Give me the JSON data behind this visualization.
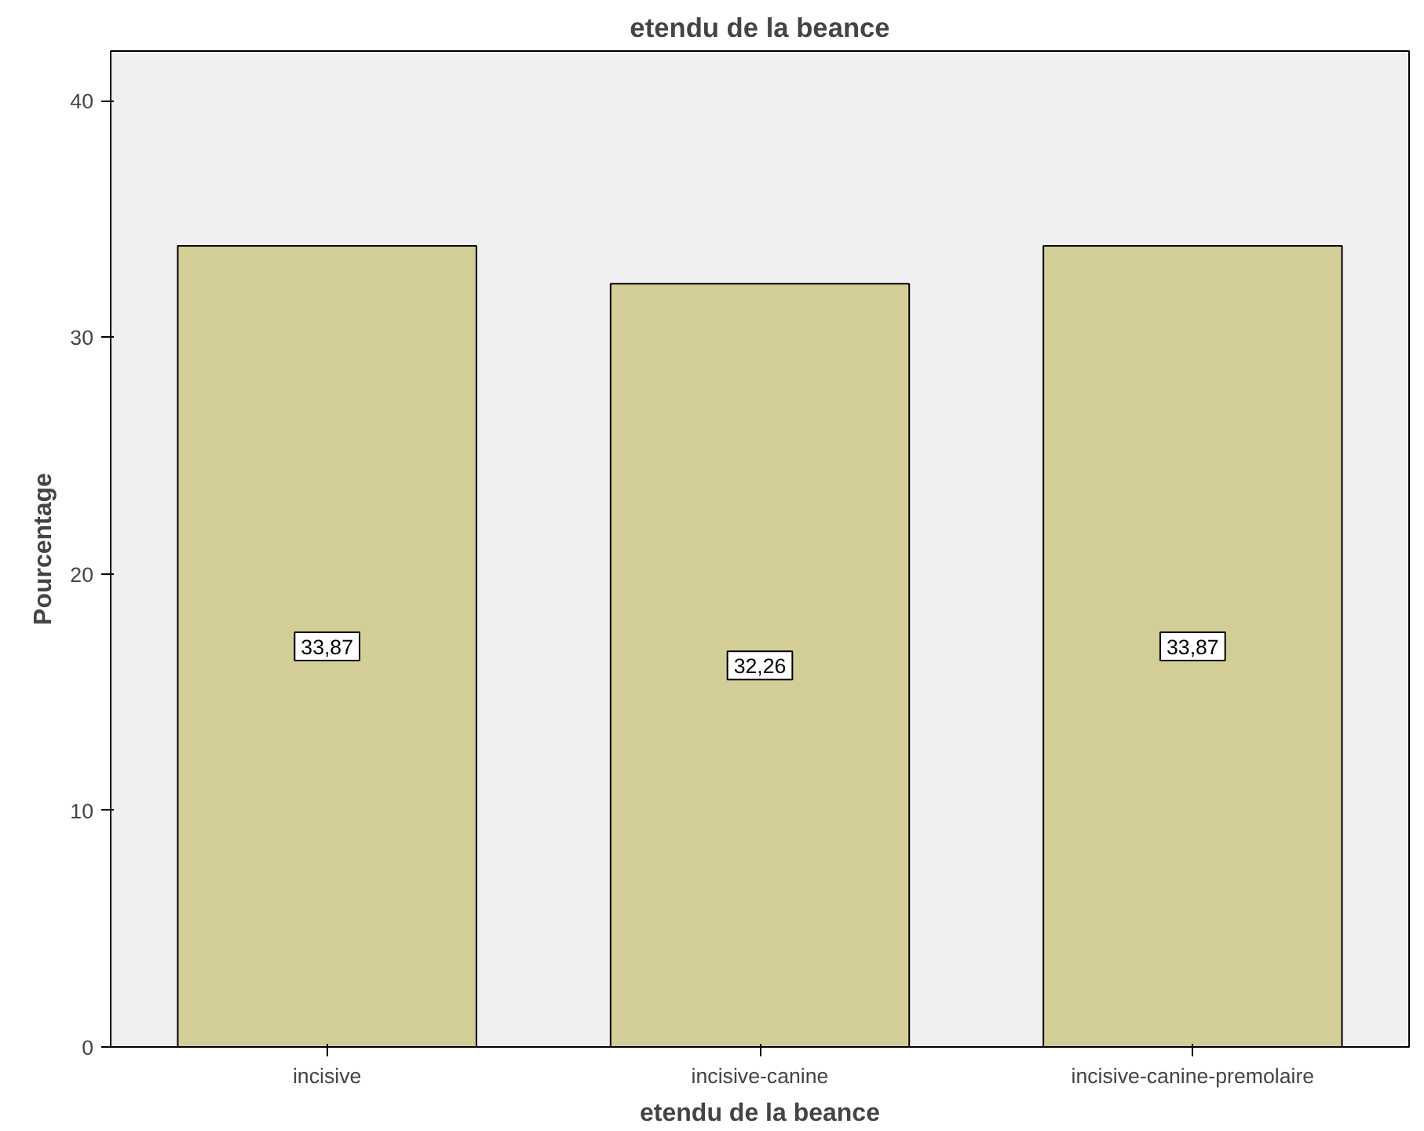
{
  "chart_data": {
    "type": "bar",
    "title": "etendu de la beance",
    "xlabel": "etendu de la beance",
    "ylabel": "Pourcentage",
    "categories": [
      "incisive",
      "incisive-canine",
      "incisive-canine-premolaire"
    ],
    "values": [
      33.87,
      32.26,
      33.87
    ],
    "value_labels": [
      "33,87",
      "32,26",
      "33,87"
    ],
    "color": "#d3ce98",
    "ylim": [
      0,
      42.1
    ],
    "yticks": [
      0,
      10,
      20,
      30,
      40
    ],
    "grid": false
  }
}
